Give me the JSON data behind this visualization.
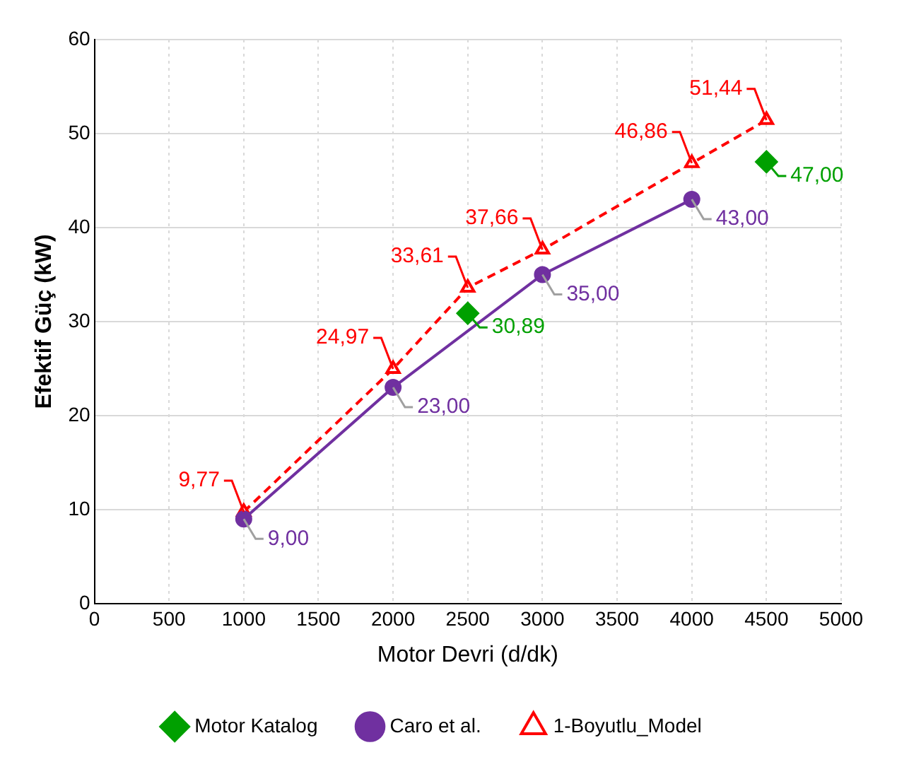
{
  "chart_data": {
    "type": "line",
    "xlabel": "Motor Devri (d/dk)",
    "ylabel": "Efektif Güç (kW)",
    "xlim": [
      0,
      5000
    ],
    "xticks": [
      0,
      500,
      1000,
      1500,
      2000,
      2500,
      3000,
      3500,
      4000,
      4500,
      5000
    ],
    "ylim": [
      0,
      60
    ],
    "yticks": [
      0,
      10,
      20,
      30,
      40,
      50,
      60
    ],
    "grid": true,
    "legend": "bottom",
    "series": [
      {
        "name": "Motor Katalog",
        "type": "scatter",
        "color": "#00a000",
        "marker": "diamond",
        "x": [
          2500,
          4500
        ],
        "values": [
          30.89,
          47.0
        ],
        "value_labels": [
          "30,89",
          "47,00"
        ]
      },
      {
        "name": "Caro et al.",
        "type": "line",
        "color": "#7030a0",
        "marker": "circle",
        "line_style": "solid",
        "x": [
          1000,
          2000,
          3000,
          4000
        ],
        "values": [
          9.0,
          23.0,
          35.0,
          43.0
        ],
        "value_labels": [
          "9,00",
          "23,00",
          "35,00",
          "43,00"
        ]
      },
      {
        "name": "1-Boyutlu_Model",
        "type": "line",
        "color": "#ff0000",
        "marker": "triangle",
        "line_style": "dashed",
        "x": [
          1000,
          2000,
          2500,
          3000,
          4000,
          4500
        ],
        "values": [
          9.77,
          24.97,
          33.61,
          37.66,
          46.86,
          51.44
        ],
        "value_labels": [
          "9,77",
          "24,97",
          "33,61",
          "37,66",
          "46,86",
          "51,44"
        ]
      }
    ]
  }
}
